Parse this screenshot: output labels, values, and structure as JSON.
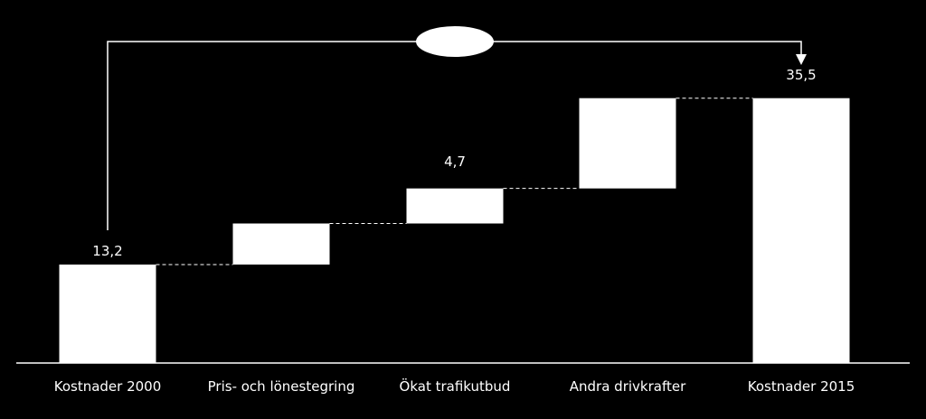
{
  "chart_data": {
    "type": "waterfall",
    "categories": [
      "Kostnader 2000",
      "Pris- och lönestegring",
      "Ökat trafikutbud",
      "Andra drivkrafter",
      "Kostnader 2015"
    ],
    "bars": [
      {
        "category": "Kostnader 2000",
        "kind": "total",
        "value": 13.2,
        "label": "13,2"
      },
      {
        "category": "Pris- och lönestegring",
        "kind": "increase",
        "value": 5.5,
        "label": ""
      },
      {
        "category": "Ökat trafikutbud",
        "kind": "increase",
        "value": 4.7,
        "label": "4,7"
      },
      {
        "category": "Andra drivkrafter",
        "kind": "increase",
        "value": 12.1,
        "label": ""
      },
      {
        "category": "Kostnader 2015",
        "kind": "total",
        "value": 35.5,
        "label": "35,5"
      }
    ],
    "ylim": [
      0,
      42
    ],
    "title": "",
    "xlabel": "",
    "ylabel": "",
    "grid": false,
    "legend": "none",
    "colors": {
      "background": "#000000",
      "bar": "#ffffff",
      "axis": "#ffffff",
      "connector": "#ffffff"
    }
  }
}
